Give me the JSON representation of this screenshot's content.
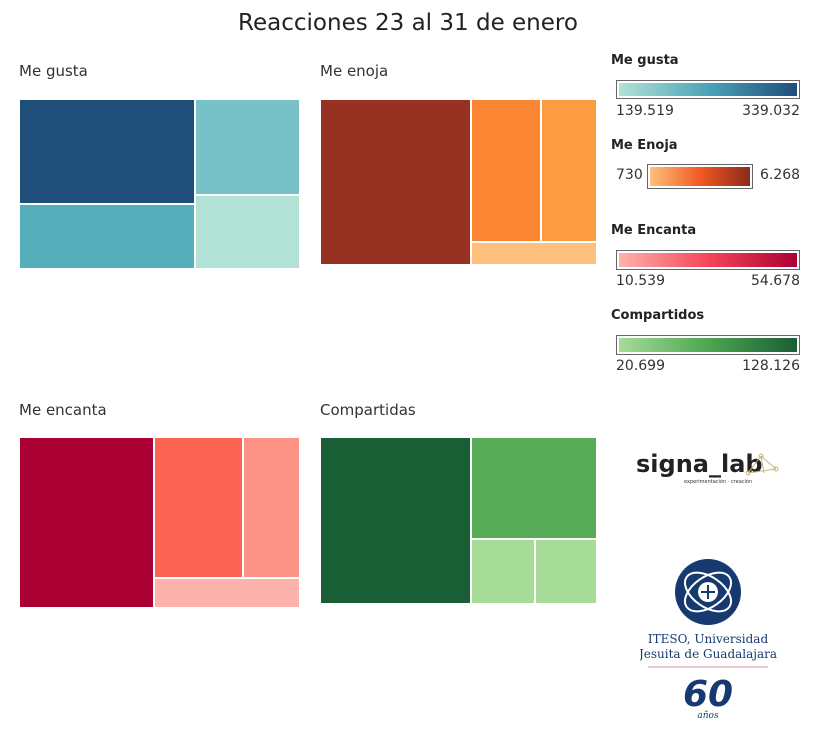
{
  "title": "Reacciones 23 al 31 de enero",
  "chart_data": [
    {
      "type": "treemap",
      "label": "Me gusta",
      "tiles": [
        {
          "color": "#1f4e7a"
        },
        {
          "color": "#78c1c7"
        },
        {
          "color": "#57aebb"
        },
        {
          "color": "#b2e2d5"
        }
      ]
    },
    {
      "type": "treemap",
      "label": "Me enoja",
      "tiles": [
        {
          "color": "#973121"
        },
        {
          "color": "#fb8631"
        },
        {
          "color": "#fb9c42"
        },
        {
          "color": "#fec07c"
        }
      ]
    },
    {
      "type": "treemap",
      "label": "Me encanta",
      "tiles": [
        {
          "color": "#ab0033"
        },
        {
          "color": "#fb6453"
        },
        {
          "color": "#fc9285"
        },
        {
          "color": "#fdb2ab"
        }
      ]
    },
    {
      "type": "treemap",
      "label": "Compartidas",
      "tiles": [
        {
          "color": "#1a5e36"
        },
        {
          "color": "#58ab57"
        },
        {
          "color": "#a6dc98"
        },
        {
          "color": "#a6dc98"
        }
      ]
    }
  ],
  "legends": [
    {
      "title": "Me gusta",
      "min": "139.519",
      "max": "339.032",
      "gradient": [
        "#b2e2d5",
        "#4aa3b8",
        "#1f4e7a"
      ]
    },
    {
      "title": "Me Enoja",
      "min": "730",
      "max": "6.268",
      "gradient": [
        "#fec07c",
        "#f15a22",
        "#8b2a1c"
      ]
    },
    {
      "title": "Me Encanta",
      "min": "10.539",
      "max": "54.678",
      "gradient": [
        "#fdb2ab",
        "#f4465a",
        "#ab0033"
      ]
    },
    {
      "title": "Compartidos",
      "min": "20.699",
      "max": "128.126",
      "gradient": [
        "#a6dc98",
        "#4ca651",
        "#1a5e36"
      ]
    }
  ],
  "logos": {
    "signa_lab": {
      "name": "signa_lab",
      "tagline": "experimentación · creación"
    },
    "iteso": {
      "line1": "ITESO, Universidad",
      "line2": "Jesuita de Guadalajara",
      "years": "60",
      "years_label": "años"
    }
  }
}
